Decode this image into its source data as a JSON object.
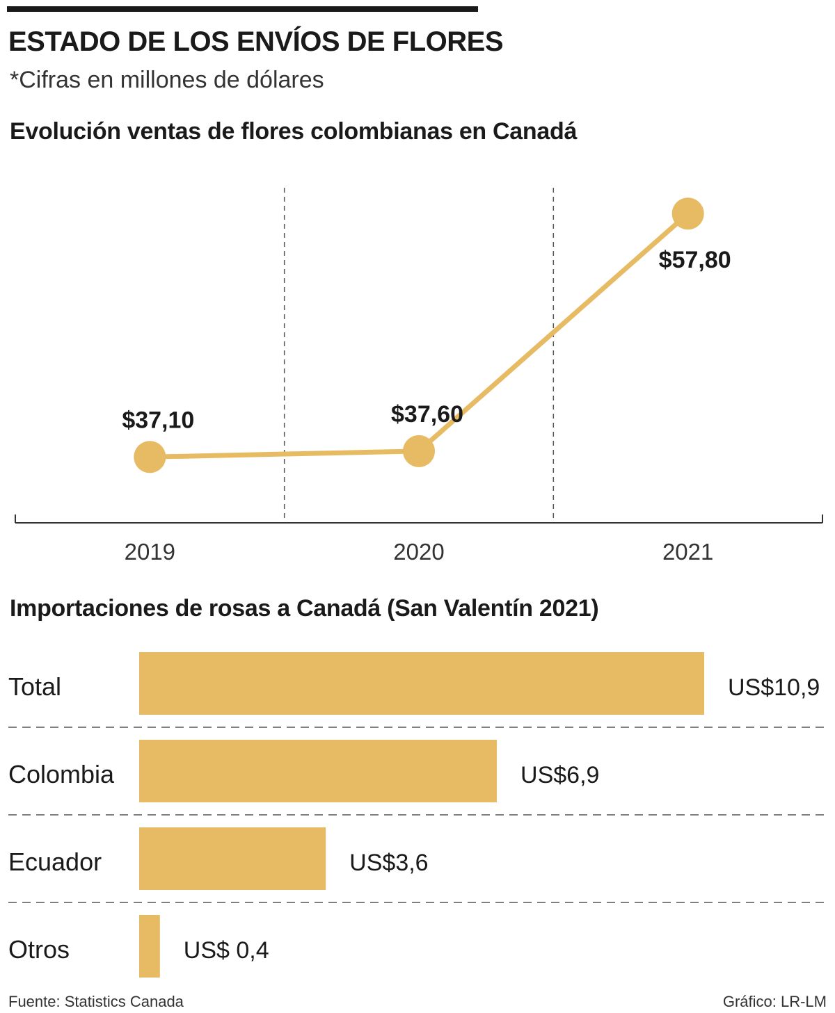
{
  "title": "ESTADO DE LOS ENVÍOS DE FLORES",
  "subtitle": "*Cifras en millones de dólares",
  "accent_color": "#E6BB63",
  "footer": {
    "source": "Fuente: Statistics Canada",
    "credit": "Gráfico: LR-LM"
  },
  "chart_data": [
    {
      "type": "line",
      "title": "Evolución ventas de flores colombianas en Canadá",
      "categories": [
        "2019",
        "2020",
        "2021"
      ],
      "values": [
        37.1,
        37.6,
        57.8
      ],
      "labels": [
        "$37,10",
        "$37,60",
        "$57,80"
      ],
      "ylim": [
        31.5,
        60
      ],
      "grid": "vertical dashed separators",
      "xlabel": "",
      "ylabel": ""
    },
    {
      "type": "bar",
      "orientation": "horizontal",
      "title": "Importaciones de rosas a Canadá (San Valentín 2021)",
      "categories": [
        "Total",
        "Colombia",
        "Ecuador",
        "Otros"
      ],
      "values": [
        10.9,
        6.9,
        3.6,
        0.4
      ],
      "labels": [
        "US$10,9",
        "US$6,9",
        "US$3,6",
        "US$ 0,4"
      ],
      "xlim": [
        0,
        10.9
      ]
    }
  ]
}
